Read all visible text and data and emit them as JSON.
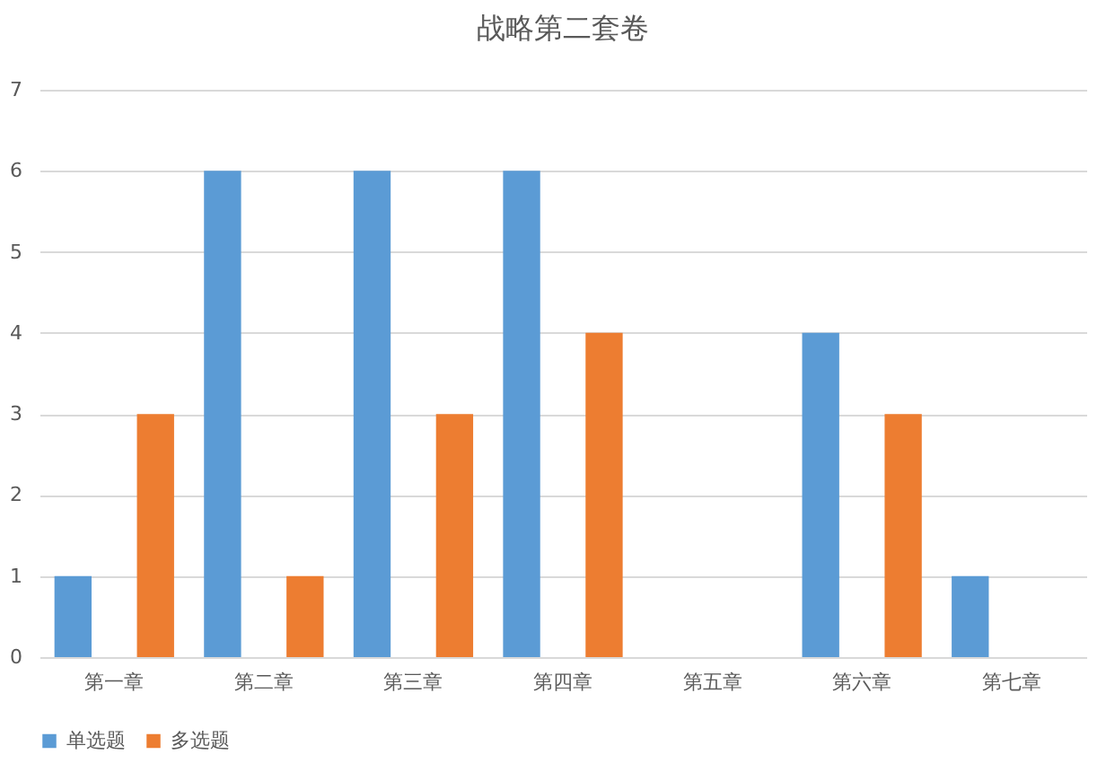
{
  "chart_data": {
    "type": "bar",
    "title": "战略第二套卷",
    "categories": [
      "第一章",
      "第二章",
      "第三章",
      "第四章",
      "第五章",
      "第六章",
      "第七章"
    ],
    "series": [
      {
        "name": "单选题",
        "color": "#5b9bd5",
        "values": [
          1,
          6,
          6,
          6,
          0,
          4,
          1
        ]
      },
      {
        "name": "多选题",
        "color": "#ed7d31",
        "values": [
          3,
          1,
          3,
          4,
          0,
          3,
          0
        ]
      }
    ],
    "ylim": [
      0,
      7
    ],
    "yticks": [
      0,
      1,
      2,
      3,
      4,
      5,
      6,
      7
    ],
    "grid": "y",
    "legend": "bottom"
  }
}
